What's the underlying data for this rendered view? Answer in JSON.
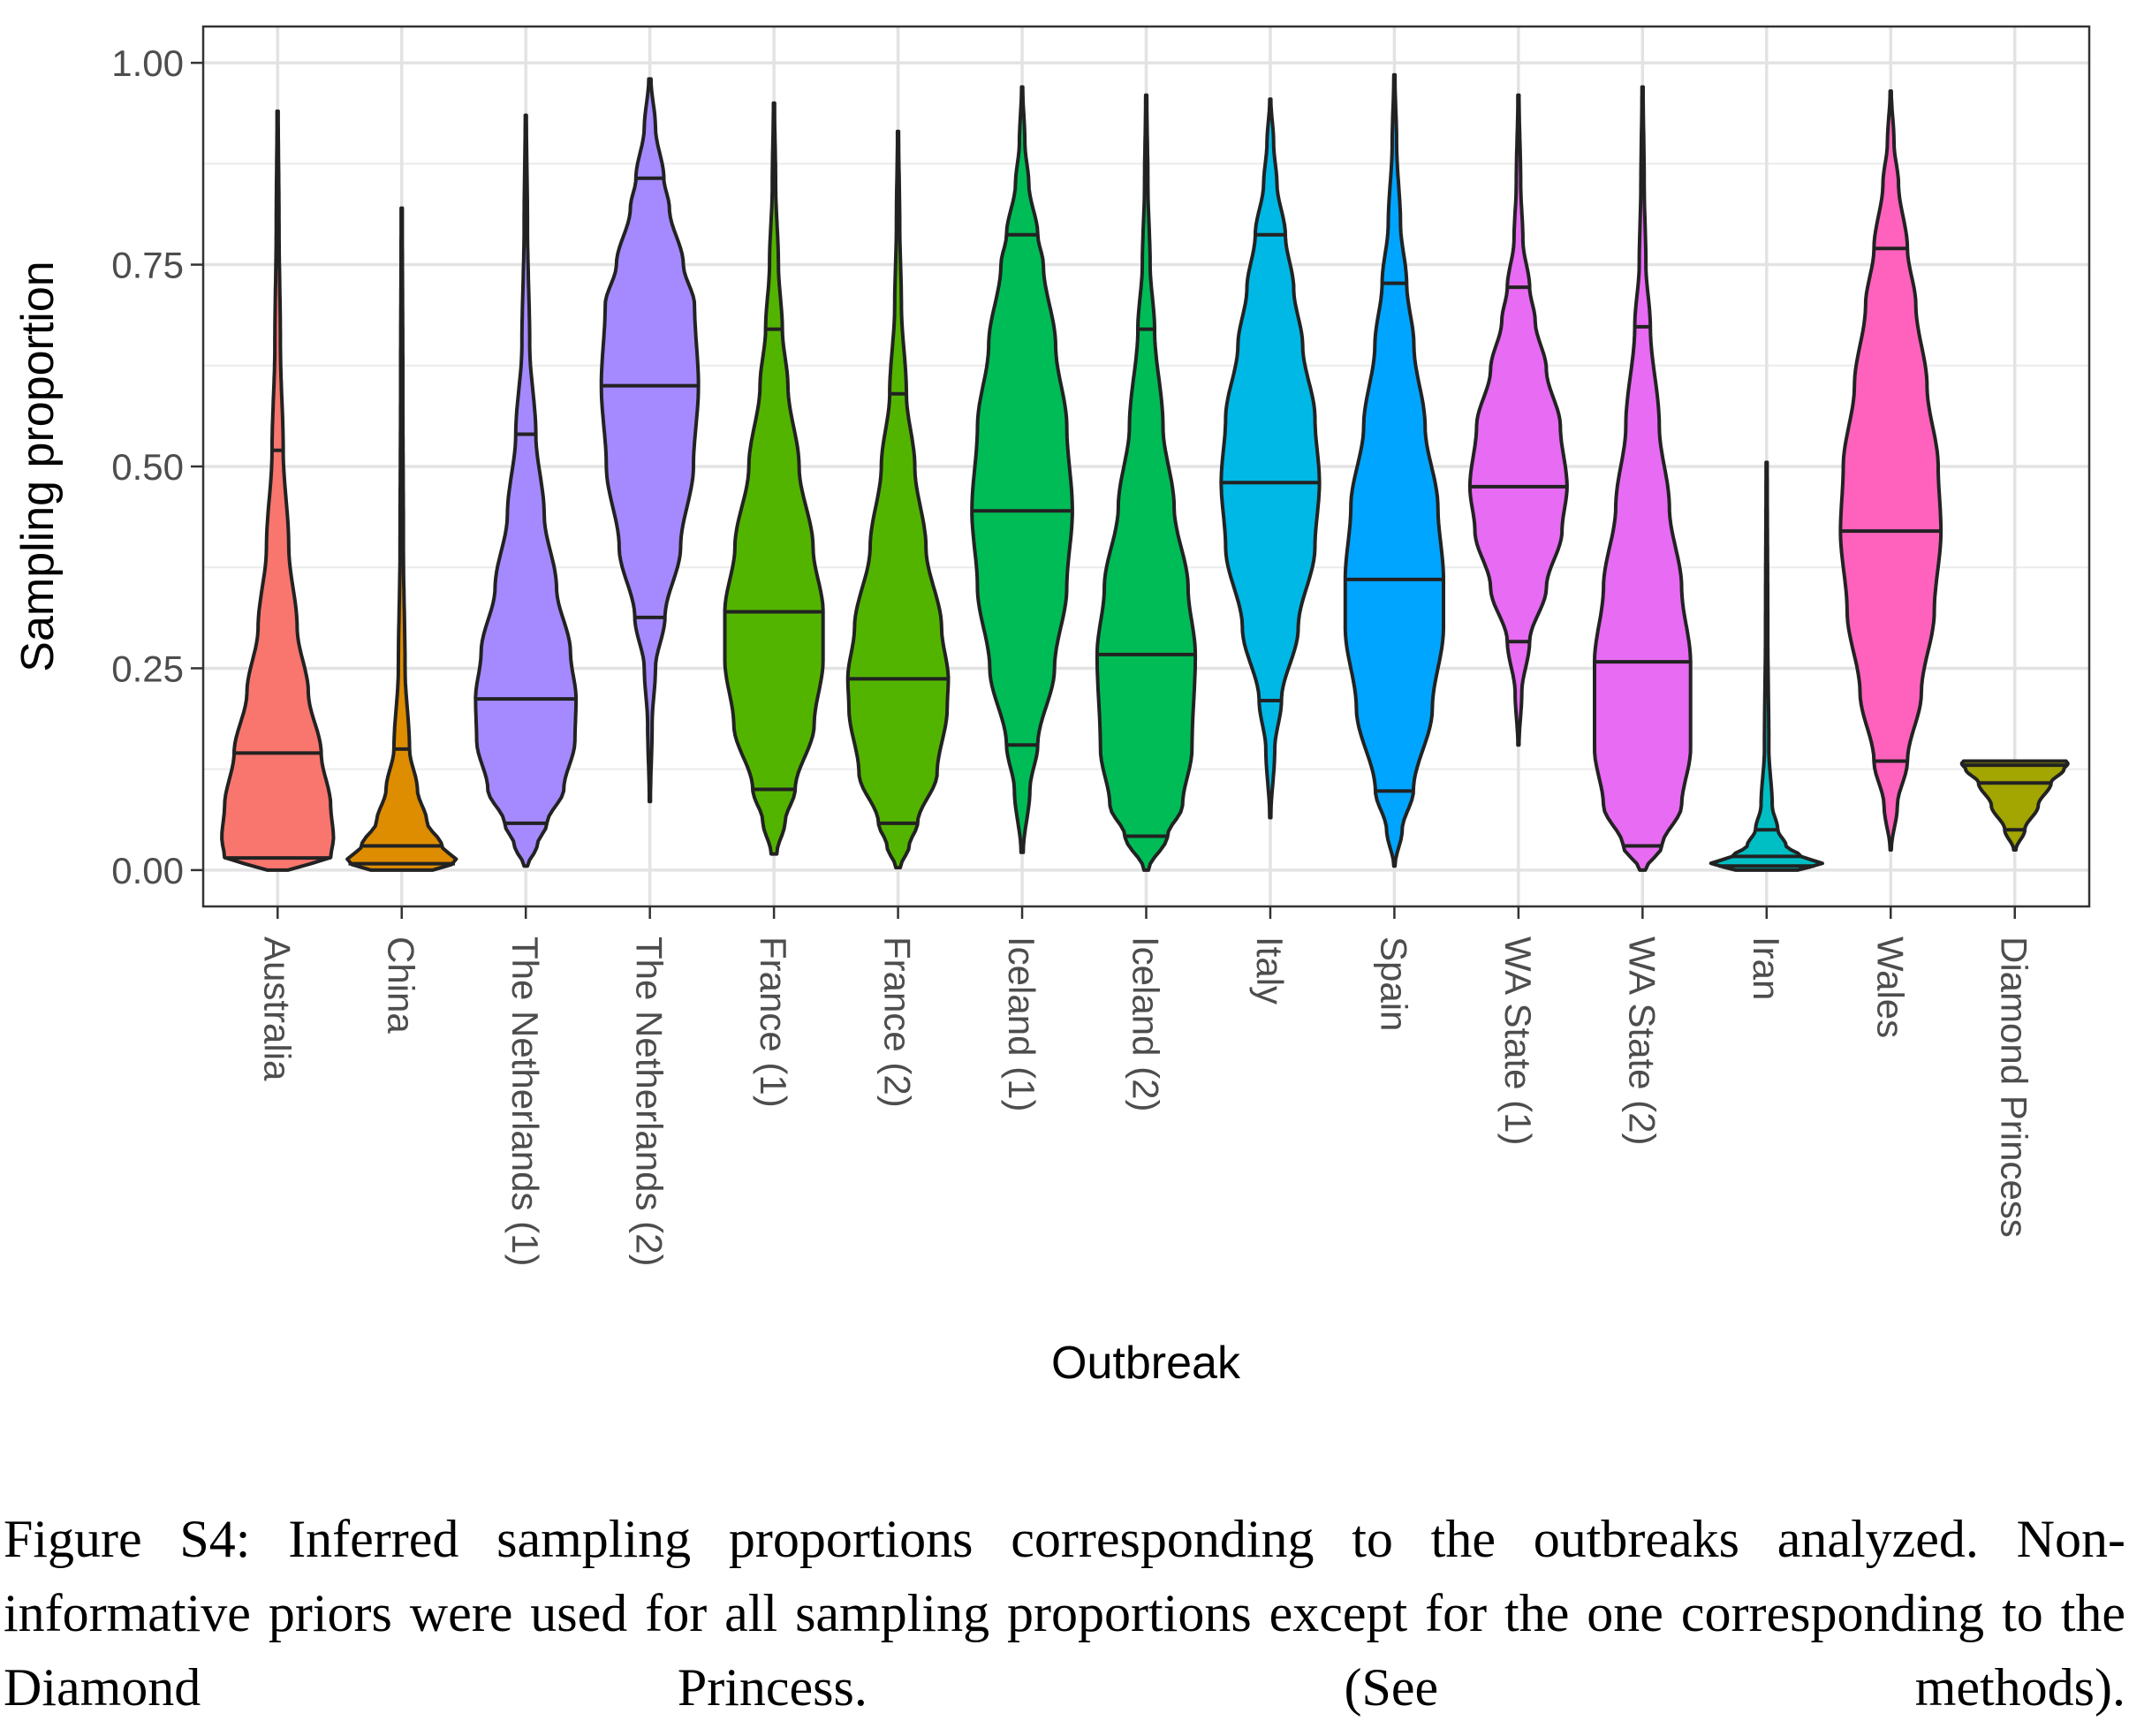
{
  "chart_data": {
    "type": "violin",
    "xlabel": "Outbreak",
    "ylabel": "Sampling proportion",
    "ylim": [
      -0.045,
      1.045
    ],
    "yticks": [
      "0.00",
      "0.25",
      "0.50",
      "0.75",
      "1.00"
    ],
    "grid": true,
    "legend": "none",
    "categories": [
      {
        "name": "Australia",
        "color": "#F8766D",
        "min": 0.0,
        "max": 0.94,
        "q1": 0.015,
        "median": 0.145,
        "q3": 0.52,
        "width": [
          [
            0.0,
            0.18
          ],
          [
            0.015,
            0.95
          ],
          [
            0.04,
            1.0
          ],
          [
            0.08,
            0.95
          ],
          [
            0.145,
            0.78
          ],
          [
            0.22,
            0.55
          ],
          [
            0.3,
            0.35
          ],
          [
            0.4,
            0.2
          ],
          [
            0.52,
            0.1
          ],
          [
            0.65,
            0.05
          ],
          [
            0.8,
            0.025
          ],
          [
            0.94,
            0.01
          ]
        ]
      },
      {
        "name": "China",
        "color": "#DE8C00",
        "min": 0.0,
        "max": 0.82,
        "q1": 0.008,
        "median": 0.03,
        "q3": 0.15,
        "width": [
          [
            0.0,
            0.55
          ],
          [
            0.01,
            1.0
          ],
          [
            0.03,
            0.72
          ],
          [
            0.06,
            0.45
          ],
          [
            0.1,
            0.28
          ],
          [
            0.15,
            0.14
          ],
          [
            0.25,
            0.06
          ],
          [
            0.4,
            0.03
          ],
          [
            0.6,
            0.02
          ],
          [
            0.82,
            0.01
          ]
        ]
      },
      {
        "name": "The Netherlands (1)",
        "color": "#A58AFF",
        "min": 0.005,
        "max": 0.935,
        "q1": 0.058,
        "median": 0.212,
        "q3": 0.54,
        "width": [
          [
            0.005,
            0.03
          ],
          [
            0.03,
            0.2
          ],
          [
            0.058,
            0.38
          ],
          [
            0.1,
            0.68
          ],
          [
            0.16,
            0.88
          ],
          [
            0.212,
            0.9
          ],
          [
            0.27,
            0.8
          ],
          [
            0.35,
            0.55
          ],
          [
            0.44,
            0.33
          ],
          [
            0.54,
            0.18
          ],
          [
            0.65,
            0.07
          ],
          [
            0.8,
            0.03
          ],
          [
            0.935,
            0.01
          ]
        ]
      },
      {
        "name": "The Netherlands (2)",
        "color": "#A58AFF",
        "min": 0.085,
        "max": 0.98,
        "q1": 0.313,
        "median": 0.6,
        "q3": 0.857,
        "width": [
          [
            0.085,
            0.01
          ],
          [
            0.18,
            0.04
          ],
          [
            0.25,
            0.1
          ],
          [
            0.313,
            0.27
          ],
          [
            0.4,
            0.55
          ],
          [
            0.5,
            0.78
          ],
          [
            0.6,
            0.87
          ],
          [
            0.7,
            0.8
          ],
          [
            0.75,
            0.6
          ],
          [
            0.82,
            0.35
          ],
          [
            0.857,
            0.25
          ],
          [
            0.92,
            0.1
          ],
          [
            0.98,
            0.02
          ]
        ]
      },
      {
        "name": "France (1)",
        "color": "#53B400",
        "min": 0.02,
        "max": 0.95,
        "q1": 0.1,
        "median": 0.32,
        "q3": 0.67,
        "width": [
          [
            0.02,
            0.05
          ],
          [
            0.06,
            0.2
          ],
          [
            0.1,
            0.38
          ],
          [
            0.18,
            0.72
          ],
          [
            0.26,
            0.88
          ],
          [
            0.32,
            0.88
          ],
          [
            0.4,
            0.7
          ],
          [
            0.5,
            0.45
          ],
          [
            0.6,
            0.25
          ],
          [
            0.67,
            0.15
          ],
          [
            0.75,
            0.08
          ],
          [
            0.85,
            0.03
          ],
          [
            0.95,
            0.01
          ]
        ]
      },
      {
        "name": "France (2)",
        "color": "#53B400",
        "min": 0.003,
        "max": 0.915,
        "q1": 0.058,
        "median": 0.237,
        "q3": 0.59,
        "width": [
          [
            0.003,
            0.04
          ],
          [
            0.03,
            0.2
          ],
          [
            0.058,
            0.35
          ],
          [
            0.12,
            0.7
          ],
          [
            0.2,
            0.88
          ],
          [
            0.237,
            0.9
          ],
          [
            0.3,
            0.78
          ],
          [
            0.4,
            0.5
          ],
          [
            0.5,
            0.3
          ],
          [
            0.59,
            0.15
          ],
          [
            0.7,
            0.06
          ],
          [
            0.8,
            0.03
          ],
          [
            0.915,
            0.01
          ]
        ]
      },
      {
        "name": "Iceland (1)",
        "color": "#00BC56",
        "min": 0.022,
        "max": 0.97,
        "q1": 0.155,
        "median": 0.445,
        "q3": 0.787,
        "width": [
          [
            0.022,
            0.02
          ],
          [
            0.1,
            0.14
          ],
          [
            0.155,
            0.28
          ],
          [
            0.25,
            0.58
          ],
          [
            0.35,
            0.8
          ],
          [
            0.445,
            0.9
          ],
          [
            0.55,
            0.8
          ],
          [
            0.65,
            0.6
          ],
          [
            0.75,
            0.38
          ],
          [
            0.787,
            0.28
          ],
          [
            0.85,
            0.12
          ],
          [
            0.9,
            0.05
          ],
          [
            0.97,
            0.01
          ]
        ]
      },
      {
        "name": "Iceland (2)",
        "color": "#00BC56",
        "min": 0.0,
        "max": 0.96,
        "q1": 0.042,
        "median": 0.267,
        "q3": 0.67,
        "width": [
          [
            0.0,
            0.04
          ],
          [
            0.042,
            0.38
          ],
          [
            0.08,
            0.65
          ],
          [
            0.15,
            0.82
          ],
          [
            0.267,
            0.88
          ],
          [
            0.35,
            0.75
          ],
          [
            0.45,
            0.5
          ],
          [
            0.55,
            0.3
          ],
          [
            0.67,
            0.15
          ],
          [
            0.75,
            0.07
          ],
          [
            0.85,
            0.03
          ],
          [
            0.96,
            0.01
          ]
        ]
      },
      {
        "name": "Italy",
        "color": "#00B8E5",
        "min": 0.065,
        "max": 0.955,
        "q1": 0.21,
        "median": 0.48,
        "q3": 0.787,
        "width": [
          [
            0.065,
            0.01
          ],
          [
            0.15,
            0.08
          ],
          [
            0.21,
            0.2
          ],
          [
            0.3,
            0.5
          ],
          [
            0.4,
            0.8
          ],
          [
            0.48,
            0.88
          ],
          [
            0.56,
            0.8
          ],
          [
            0.65,
            0.58
          ],
          [
            0.72,
            0.42
          ],
          [
            0.787,
            0.27
          ],
          [
            0.85,
            0.12
          ],
          [
            0.9,
            0.06
          ],
          [
            0.955,
            0.01
          ]
        ]
      },
      {
        "name": "Spain",
        "color": "#00A5FF",
        "min": 0.005,
        "max": 0.985,
        "q1": 0.098,
        "median": 0.36,
        "q3": 0.727,
        "width": [
          [
            0.005,
            0.01
          ],
          [
            0.05,
            0.14
          ],
          [
            0.098,
            0.34
          ],
          [
            0.2,
            0.68
          ],
          [
            0.3,
            0.88
          ],
          [
            0.36,
            0.88
          ],
          [
            0.45,
            0.78
          ],
          [
            0.55,
            0.55
          ],
          [
            0.65,
            0.35
          ],
          [
            0.727,
            0.22
          ],
          [
            0.8,
            0.11
          ],
          [
            0.9,
            0.04
          ],
          [
            0.985,
            0.01
          ]
        ]
      },
      {
        "name": "WA State (1)",
        "color": "#E76BF3",
        "min": 0.155,
        "max": 0.96,
        "q1": 0.283,
        "median": 0.475,
        "q3": 0.722,
        "width": [
          [
            0.155,
            0.01
          ],
          [
            0.22,
            0.06
          ],
          [
            0.283,
            0.2
          ],
          [
            0.35,
            0.5
          ],
          [
            0.42,
            0.78
          ],
          [
            0.475,
            0.87
          ],
          [
            0.55,
            0.75
          ],
          [
            0.62,
            0.5
          ],
          [
            0.68,
            0.3
          ],
          [
            0.722,
            0.2
          ],
          [
            0.78,
            0.08
          ],
          [
            0.85,
            0.04
          ],
          [
            0.96,
            0.01
          ]
        ]
      },
      {
        "name": "WA State (2)",
        "color": "#E76BF3",
        "min": 0.0,
        "max": 0.97,
        "q1": 0.03,
        "median": 0.258,
        "q3": 0.673,
        "width": [
          [
            0.0,
            0.05
          ],
          [
            0.03,
            0.35
          ],
          [
            0.08,
            0.7
          ],
          [
            0.15,
            0.86
          ],
          [
            0.258,
            0.86
          ],
          [
            0.35,
            0.7
          ],
          [
            0.45,
            0.48
          ],
          [
            0.55,
            0.3
          ],
          [
            0.673,
            0.14
          ],
          [
            0.75,
            0.06
          ],
          [
            0.85,
            0.03
          ],
          [
            0.97,
            0.01
          ]
        ]
      },
      {
        "name": "Iran",
        "color": "#00BFC4",
        "min": 0.0,
        "max": 0.505,
        "q1": 0.005,
        "median": 0.017,
        "q3": 0.05,
        "width": [
          [
            0.0,
            0.55
          ],
          [
            0.008,
            1.0
          ],
          [
            0.017,
            0.62
          ],
          [
            0.03,
            0.35
          ],
          [
            0.05,
            0.2
          ],
          [
            0.08,
            0.1
          ],
          [
            0.15,
            0.04
          ],
          [
            0.3,
            0.02
          ],
          [
            0.505,
            0.01
          ]
        ]
      },
      {
        "name": "Wales",
        "color": "#FF62BC",
        "min": 0.025,
        "max": 0.965,
        "q1": 0.135,
        "median": 0.42,
        "q3": 0.77,
        "width": [
          [
            0.025,
            0.01
          ],
          [
            0.08,
            0.12
          ],
          [
            0.135,
            0.3
          ],
          [
            0.22,
            0.55
          ],
          [
            0.32,
            0.78
          ],
          [
            0.42,
            0.9
          ],
          [
            0.5,
            0.85
          ],
          [
            0.6,
            0.65
          ],
          [
            0.7,
            0.45
          ],
          [
            0.77,
            0.3
          ],
          [
            0.85,
            0.14
          ],
          [
            0.9,
            0.06
          ],
          [
            0.965,
            0.01
          ]
        ]
      },
      {
        "name": "Diamond Princess",
        "color": "#A3A500",
        "min": 0.025,
        "max": 0.135,
        "q1": 0.05,
        "median": 0.108,
        "q3": 0.13,
        "width": [
          [
            0.025,
            0.02
          ],
          [
            0.05,
            0.18
          ],
          [
            0.08,
            0.42
          ],
          [
            0.108,
            0.65
          ],
          [
            0.125,
            0.88
          ],
          [
            0.132,
            0.95
          ],
          [
            0.135,
            0.92
          ]
        ]
      }
    ]
  },
  "caption": "Figure S4: Inferred sampling proportions corresponding to the outbreaks analyzed. Non-informative priors were used for all sampling proportions except for the one corresponding to the Diamond Princess. (See methods)."
}
